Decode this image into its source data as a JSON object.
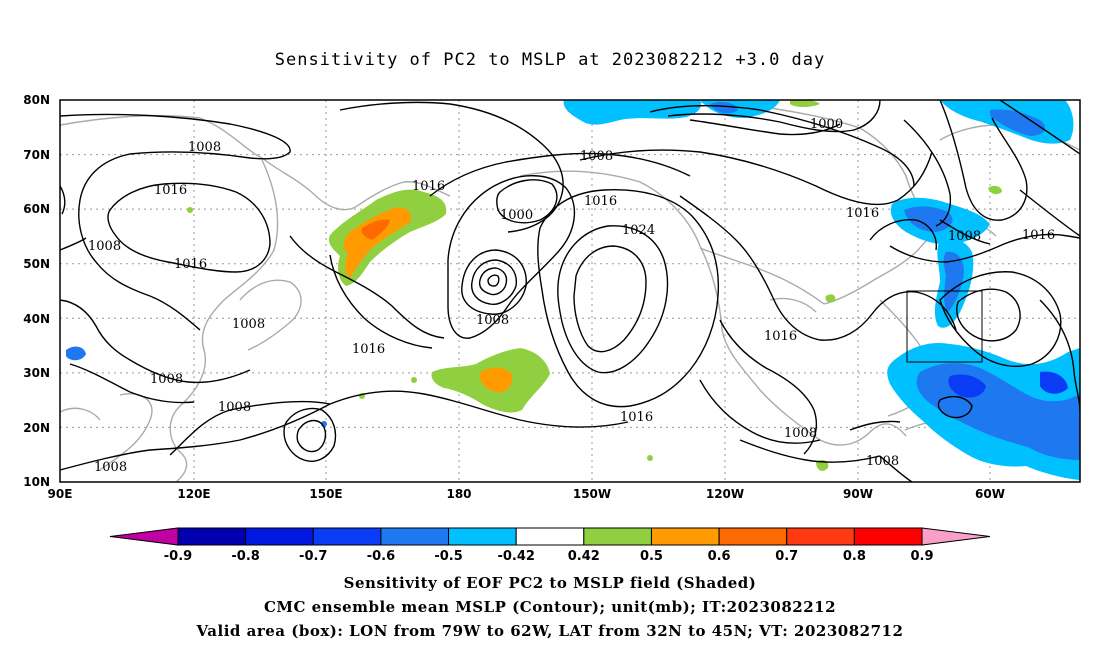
{
  "title": "Sensitivity of PC2 to MSLP at 2023082212 +3.0 day",
  "captions": {
    "line1": "Sensitivity of EOF PC2 to MSLP field (Shaded)",
    "line2": "CMC ensemble mean MSLP (Contour); unit(mb); IT:2023082212",
    "line3": "Valid area (box): LON from 79W to 62W, LAT from 32N to 45N; VT: 2023082712"
  },
  "axes": {
    "lat_labels": [
      "80N",
      "70N",
      "60N",
      "50N",
      "40N",
      "30N",
      "20N",
      "10N"
    ],
    "lon_labels": [
      "90E",
      "120E",
      "150E",
      "180",
      "150W",
      "120W",
      "90W",
      "60W"
    ]
  },
  "contour_labels": {
    "c1000": "1000",
    "c1008": "1008",
    "c1016": "1016",
    "c1024": "1024"
  },
  "colorbar": {
    "ticks": [
      "-0.9",
      "-0.8",
      "-0.7",
      "-0.6",
      "-0.5",
      "-0.42",
      "0.42",
      "0.5",
      "0.6",
      "0.7",
      "0.8",
      "0.9"
    ],
    "colors": [
      "#c000a0",
      "#0000b0",
      "#0018e0",
      "#0a3cf5",
      "#1e78f0",
      "#00c0ff",
      "#ffffff",
      "#90d040",
      "#ff9a00",
      "#ff6a00",
      "#ff3a10",
      "#ff0000",
      "#f8a0c8"
    ]
  },
  "valid_box": {
    "lon_min": -79,
    "lon_max": -62,
    "lat_min": 32,
    "lat_max": 45
  }
}
